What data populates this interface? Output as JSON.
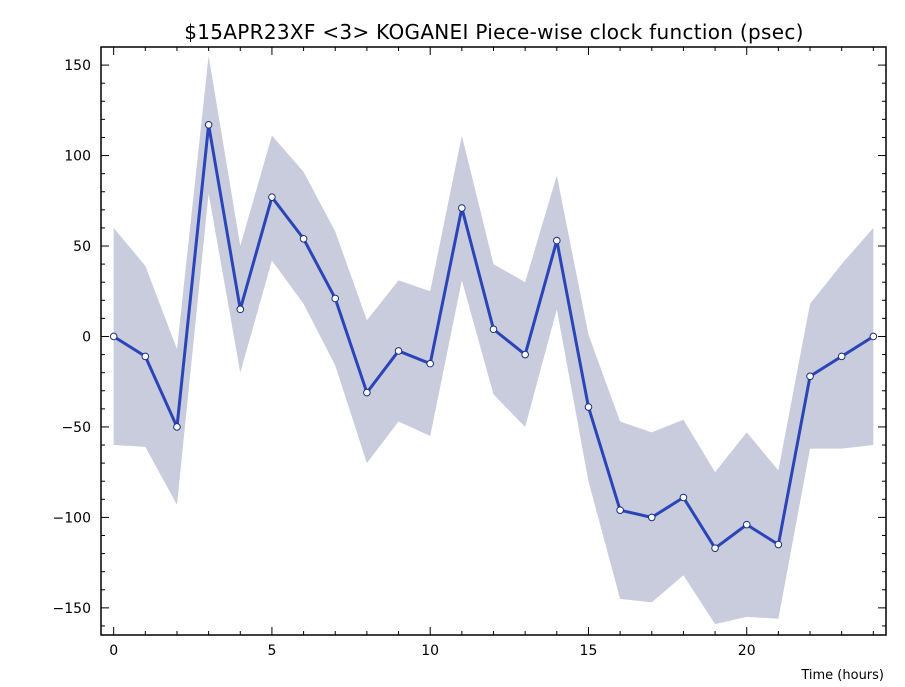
{
  "chart_data": {
    "type": "line",
    "title": "$15APR23XF <3>  KOGANEI   Piece-wise clock function (psec)",
    "xlabel": "Time (hours)",
    "ylabel": "",
    "xlim": [
      -0.4,
      24.4
    ],
    "ylim": [
      -165,
      160
    ],
    "xticks": [
      0,
      5,
      10,
      15,
      20
    ],
    "yticks": [
      -150,
      -100,
      -50,
      0,
      50,
      100,
      150
    ],
    "grid": false,
    "colors": {
      "line": "#2b45b8",
      "band": "#c8ccdc",
      "marker_fill": "#ffffff"
    },
    "series": [
      {
        "x": [
          0,
          1,
          2,
          3,
          4,
          5,
          6,
          7,
          8,
          9,
          10,
          11,
          12,
          13,
          14,
          15,
          16,
          17,
          18,
          19,
          20,
          21,
          22,
          23,
          24
        ],
        "values": [
          0,
          -11,
          -50,
          117,
          15,
          77,
          54,
          21,
          -31,
          -8,
          -15,
          71,
          4,
          -10,
          53,
          -39,
          -96,
          -100,
          -89,
          -117,
          -104,
          -115,
          -22,
          -11,
          0
        ],
        "upper": [
          60,
          39,
          -7,
          155,
          50,
          111,
          91,
          58,
          9,
          31,
          25,
          111,
          40,
          30,
          89,
          1,
          -47,
          -53,
          -46,
          -75,
          -53,
          -74,
          18,
          40,
          60
        ],
        "lower": [
          -60,
          -61,
          -93,
          79,
          -20,
          42,
          18,
          -16,
          -70,
          -47,
          -55,
          31,
          -32,
          -50,
          15,
          -80,
          -145,
          -147,
          -132,
          -159,
          -155,
          -156,
          -62,
          -62,
          -60
        ]
      }
    ]
  }
}
